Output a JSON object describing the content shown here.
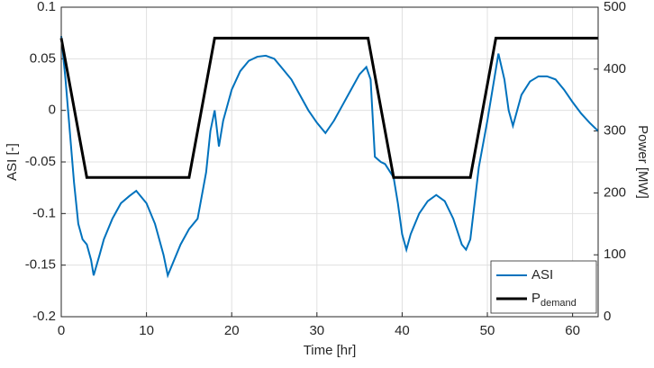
{
  "chart_data": {
    "type": "line",
    "xlabel": "Time [hr]",
    "ylabel": "ASI [-]",
    "y2label": "Power [MW]",
    "xlim": [
      0,
      63
    ],
    "xticks": [
      0,
      10,
      20,
      30,
      40,
      50,
      60
    ],
    "ylim": [
      -0.2,
      0.1
    ],
    "yticks": [
      -0.2,
      -0.15,
      -0.1,
      -0.05,
      0,
      0.05,
      0.1
    ],
    "y2lim": [
      0,
      500
    ],
    "y2ticks": [
      0,
      100,
      200,
      300,
      400,
      500
    ],
    "grid": true,
    "legend": "lower right",
    "series": [
      {
        "name": "ASI",
        "color": "#0072bd",
        "x": [
          0,
          0.5,
          1,
          1.5,
          2,
          2.5,
          3,
          3.5,
          3.8,
          4.5,
          5,
          6,
          7,
          8,
          8.8,
          10,
          11,
          12,
          12.5,
          13,
          14,
          15,
          16,
          17,
          17.5,
          18,
          18.5,
          19,
          20,
          21,
          22,
          23,
          24,
          25,
          26,
          27,
          28,
          29,
          30,
          31,
          32,
          33,
          34,
          35,
          35.8,
          36.3,
          36.8,
          37.5,
          38,
          39,
          39.5,
          40,
          40.5,
          41,
          42,
          43,
          44,
          45,
          46,
          47,
          47.5,
          48,
          48.5,
          49,
          50,
          51,
          51.3,
          52,
          52.5,
          53,
          53.5,
          54,
          55,
          56,
          57,
          58,
          59,
          60,
          61,
          62,
          63
        ],
        "values": [
          0.072,
          0.03,
          -0.02,
          -0.07,
          -0.11,
          -0.125,
          -0.13,
          -0.145,
          -0.16,
          -0.14,
          -0.125,
          -0.105,
          -0.09,
          -0.083,
          -0.078,
          -0.09,
          -0.11,
          -0.14,
          -0.16,
          -0.15,
          -0.13,
          -0.115,
          -0.105,
          -0.06,
          -0.02,
          0.0,
          -0.035,
          -0.01,
          0.02,
          0.038,
          0.048,
          0.052,
          0.053,
          0.05,
          0.04,
          0.03,
          0.015,
          0.0,
          -0.012,
          -0.022,
          -0.01,
          0.005,
          0.02,
          0.035,
          0.042,
          0.03,
          -0.045,
          -0.05,
          -0.052,
          -0.065,
          -0.09,
          -0.12,
          -0.135,
          -0.12,
          -0.1,
          -0.088,
          -0.082,
          -0.088,
          -0.105,
          -0.13,
          -0.135,
          -0.125,
          -0.09,
          -0.055,
          -0.01,
          0.04,
          0.055,
          0.03,
          0.0,
          -0.015,
          0.0,
          0.015,
          0.028,
          0.033,
          0.033,
          0.03,
          0.02,
          0.008,
          -0.003,
          -0.012,
          -0.02
        ]
      },
      {
        "name": "P",
        "name_subscript": "demand",
        "color": "#000000",
        "axis": "y2",
        "x": [
          0,
          3,
          15,
          18,
          36,
          39,
          48,
          51,
          63
        ],
        "values": [
          450,
          225,
          225,
          450,
          450,
          225,
          225,
          450,
          450
        ]
      }
    ]
  }
}
